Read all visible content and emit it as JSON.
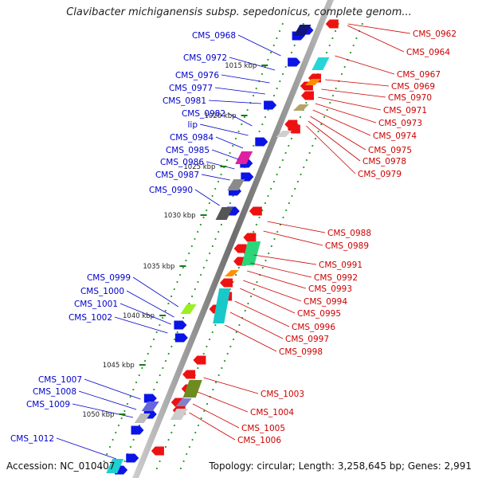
{
  "title": "Clavibacter michiganensis subsp. sepedonicus, complete genom...",
  "footer": {
    "accession": "Accession: NC_010407",
    "summary": "Topology: circular; Length: 3,258,645 bp; Genes: 2,991"
  },
  "colors": {
    "left_label": "#0000cc",
    "right_label": "#cc0000",
    "dot_track": "#2a9d2a",
    "backbone": "#888888"
  },
  "kbp_ticks": [
    "1015 kbp",
    "1020 kbp",
    "1025 kbp",
    "1030 kbp",
    "1035 kbp",
    "1040 kbp",
    "1045 kbp",
    "1050 kbp"
  ],
  "left_labels": [
    "CMS_0968",
    "CMS_0972",
    "CMS_0976",
    "CMS_0977",
    "CMS_0981",
    "CMS_0982",
    "lip",
    "CMS_0984",
    "CMS_0985",
    "CMS_0986",
    "CMS_0987",
    "CMS_0990",
    "CMS_0999",
    "CMS_1000",
    "CMS_1001",
    "CMS_1002",
    "CMS_1007",
    "CMS_1008",
    "CMS_1009",
    "CMS_1012"
  ],
  "right_labels": [
    "CMS_0962",
    "CMS_0964",
    "CMS_0967",
    "CMS_0969",
    "CMS_0970",
    "CMS_0971",
    "CMS_0973",
    "CMS_0974",
    "CMS_0975",
    "CMS_0978",
    "CMS_0979",
    "CMS_0988",
    "CMS_0989",
    "CMS_0991",
    "CMS_0992",
    "CMS_0993",
    "CMS_0994",
    "CMS_0995",
    "CMS_0996",
    "CMS_0997",
    "CMS_0998",
    "CMS_1003",
    "CMS_1004",
    "CMS_1005",
    "CMS_1006"
  ]
}
